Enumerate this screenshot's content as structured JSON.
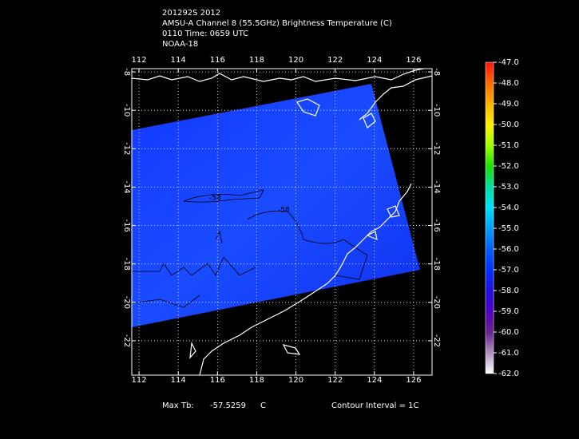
{
  "header": {
    "lines": [
      "201292S 2012",
      "AMSU-A Channel 8 (55.5GHz) Brightness Temperature (C)",
      "0110 Time: 0659 UTC",
      "NOAA-18"
    ]
  },
  "map": {
    "xticks": [
      112,
      114,
      116,
      118,
      120,
      122,
      124,
      126
    ],
    "yticks": [
      -8,
      -10,
      -12,
      -14,
      -16,
      -18,
      -20,
      -22
    ],
    "xlim": [
      111.63,
      126.94
    ],
    "ylim": [
      -23.79,
      -7.83
    ],
    "contour_labels": [
      "-58",
      "-58"
    ]
  },
  "colorbar": {
    "labels": [
      "-47.0",
      "-48.0",
      "-49.0",
      "-50.0",
      "-51.0",
      "-52.0",
      "-53.0",
      "-54.0",
      "-55.0",
      "-56.0",
      "-57.0",
      "-58.0",
      "-59.0",
      "-60.0",
      "-61.0",
      "-62.0"
    ],
    "colors": [
      "#ff1010",
      "#ff6a00",
      "#ffb000",
      "#fff000",
      "#a0ff00",
      "#20e000",
      "#00e0a0",
      "#00e0ff",
      "#00a0ff",
      "#0060ff",
      "#0030ff",
      "#2010e0",
      "#5000c0",
      "#6a2090",
      "#b090c0",
      "#ffffff"
    ]
  },
  "footer": {
    "max_label": "Max Tb:",
    "max_value": "-57.5259",
    "max_unit": "C",
    "contour_interval": "Contour Interval = 1C"
  }
}
